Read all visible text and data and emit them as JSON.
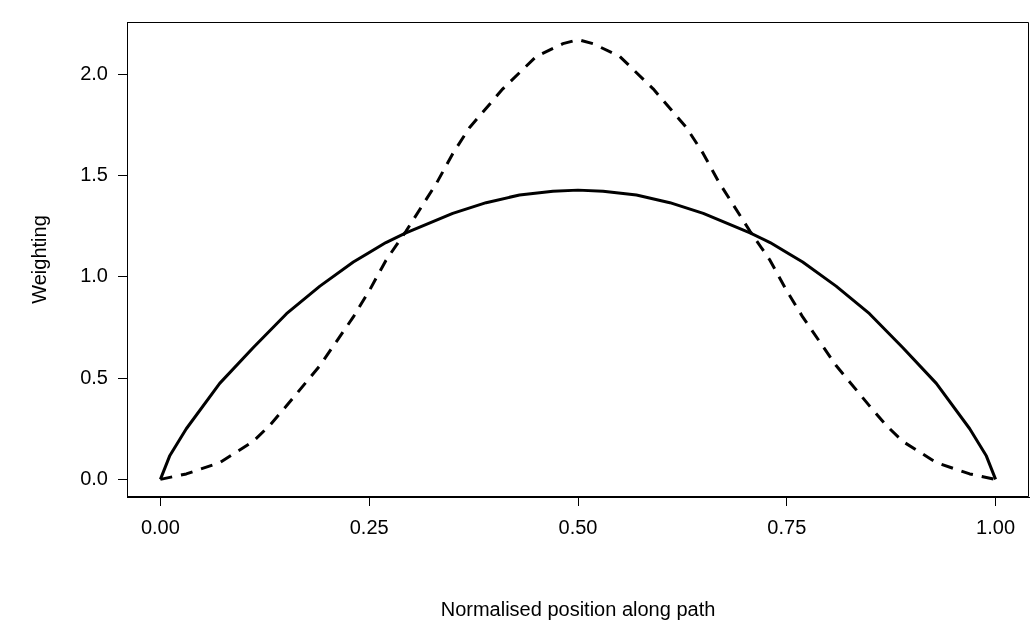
{
  "chart_data": {
    "type": "line",
    "xlabel": "Normalised position along path",
    "ylabel": "Weighting",
    "xlim": [
      -0.04,
      1.04
    ],
    "ylim": [
      -0.087,
      2.258
    ],
    "xticks": [
      {
        "value": 0,
        "label": "0.00"
      },
      {
        "value": 0.25,
        "label": "0.25"
      },
      {
        "value": 0.5,
        "label": "0.50"
      },
      {
        "value": 0.75,
        "label": "0.75"
      },
      {
        "value": 1,
        "label": "1.00"
      }
    ],
    "yticks": [
      {
        "value": 0,
        "label": "0.0"
      },
      {
        "value": 0.5,
        "label": "0.5"
      },
      {
        "value": 1,
        "label": "1.0"
      },
      {
        "value": 1.5,
        "label": "1.5"
      },
      {
        "value": 2,
        "label": "2.0"
      }
    ],
    "grid": false,
    "legend": false,
    "marker": "none",
    "series": [
      {
        "color": "#000000",
        "line_style": "solid",
        "x": [
          0,
          0.011,
          0.031,
          0.071,
          0.111,
          0.151,
          0.191,
          0.231,
          0.27,
          0.294,
          0.35,
          0.39,
          0.43,
          0.47,
          0.5,
          0.53,
          0.57,
          0.61,
          0.65,
          0.706,
          0.73,
          0.769,
          0.809,
          0.849,
          0.889,
          0.929,
          0.969,
          0.989,
          1
        ],
        "values": [
          0,
          0.115,
          0.25,
          0.474,
          0.65,
          0.818,
          0.954,
          1.073,
          1.169,
          1.217,
          1.313,
          1.366,
          1.404,
          1.423,
          1.428,
          1.423,
          1.404,
          1.366,
          1.313,
          1.217,
          1.169,
          1.073,
          0.954,
          0.818,
          0.65,
          0.474,
          0.25,
          0.115,
          0
        ]
      },
      {
        "color": "#000000",
        "line_style": "dashed",
        "x": [
          0,
          0.031,
          0.071,
          0.111,
          0.131,
          0.151,
          0.191,
          0.231,
          0.251,
          0.27,
          0.294,
          0.331,
          0.35,
          0.37,
          0.41,
          0.45,
          0.482,
          0.5,
          0.518,
          0.55,
          0.59,
          0.63,
          0.65,
          0.669,
          0.706,
          0.73,
          0.749,
          0.769,
          0.809,
          0.849,
          0.869,
          0.889,
          0.929,
          0.969,
          1
        ],
        "values": [
          0,
          0.027,
          0.083,
          0.187,
          0.267,
          0.363,
          0.562,
          0.802,
          0.938,
          1.081,
          1.225,
          1.465,
          1.608,
          1.736,
          1.928,
          2.088,
          2.151,
          2.171,
          2.151,
          2.088,
          1.928,
          1.736,
          1.608,
          1.465,
          1.225,
          1.081,
          0.938,
          0.802,
          0.562,
          0.363,
          0.267,
          0.187,
          0.083,
          0.027,
          0
        ]
      }
    ]
  }
}
